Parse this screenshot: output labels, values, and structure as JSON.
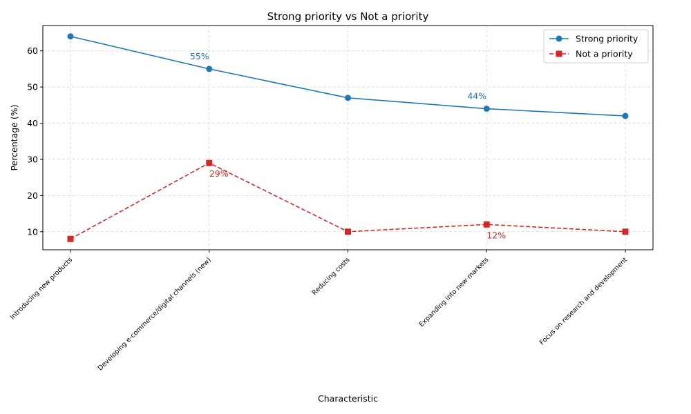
{
  "chart_data": {
    "type": "line",
    "title": "Strong priority vs Not a priority",
    "xlabel": "Characteristic",
    "ylabel": "Percentage (%)",
    "categories": [
      "Introducing new products",
      "Developing e-commerce/digital channels (new)",
      "Reducing costs",
      "Expanding into new markets",
      "Focus on research and development"
    ],
    "ylim": [
      5,
      67
    ],
    "yticks": [
      10,
      20,
      30,
      40,
      50,
      60
    ],
    "grid": true,
    "legend_position": "top-right",
    "series": [
      {
        "name": "Strong priority",
        "values": [
          64,
          55,
          47,
          44,
          42
        ],
        "color": "#1f77b4",
        "line_style": "solid",
        "marker": "circle",
        "data_labels": [
          {
            "index": 1,
            "text": "55%"
          },
          {
            "index": 3,
            "text": "44%"
          }
        ]
      },
      {
        "name": "Not a priority",
        "values": [
          8,
          29,
          10,
          12,
          10
        ],
        "color": "#d62728",
        "line_style": "dashed",
        "marker": "square",
        "data_labels": [
          {
            "index": 1,
            "text": "29%"
          },
          {
            "index": 3,
            "text": "12%"
          }
        ]
      }
    ]
  }
}
